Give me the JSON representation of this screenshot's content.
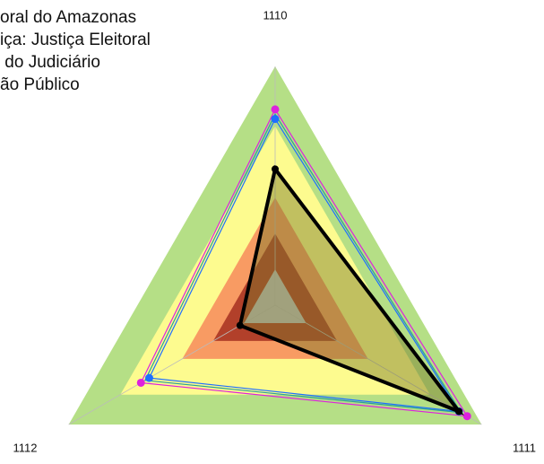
{
  "chart_data": {
    "type": "radar",
    "categories": [
      "1110",
      "1111",
      "1112"
    ],
    "rlim": [
      0,
      100
    ],
    "bands": [
      {
        "value": 100,
        "color": "#b5df86"
      },
      {
        "value": 75,
        "color": "#fdfb8f"
      },
      {
        "value": 45,
        "color": "#f89b63"
      },
      {
        "value": 30,
        "color": "#b2402a"
      },
      {
        "value": 15,
        "color": "#c4c4c4"
      }
    ],
    "legend_labels": [
      "oral do Amazonas",
      "iça: Justiça Eleitoral",
      " do Judiciário",
      "ão Público"
    ],
    "series": [
      {
        "name": "oral do Amazonas",
        "color": "#000000",
        "fill": "rgba(120,120,40,0.45)",
        "values": [
          57,
          89,
          17
        ]
      },
      {
        "name": "iça: Justiça Eleitoral",
        "color": "#1e6fff",
        "values": [
          78,
          89,
          61
        ]
      },
      {
        "name": " do Judiciário",
        "color": "#dd22dd",
        "values": [
          82,
          93,
          65
        ]
      },
      {
        "name": "ão Público",
        "color": "#2aa198",
        "values": [
          80,
          90,
          63
        ]
      }
    ]
  }
}
